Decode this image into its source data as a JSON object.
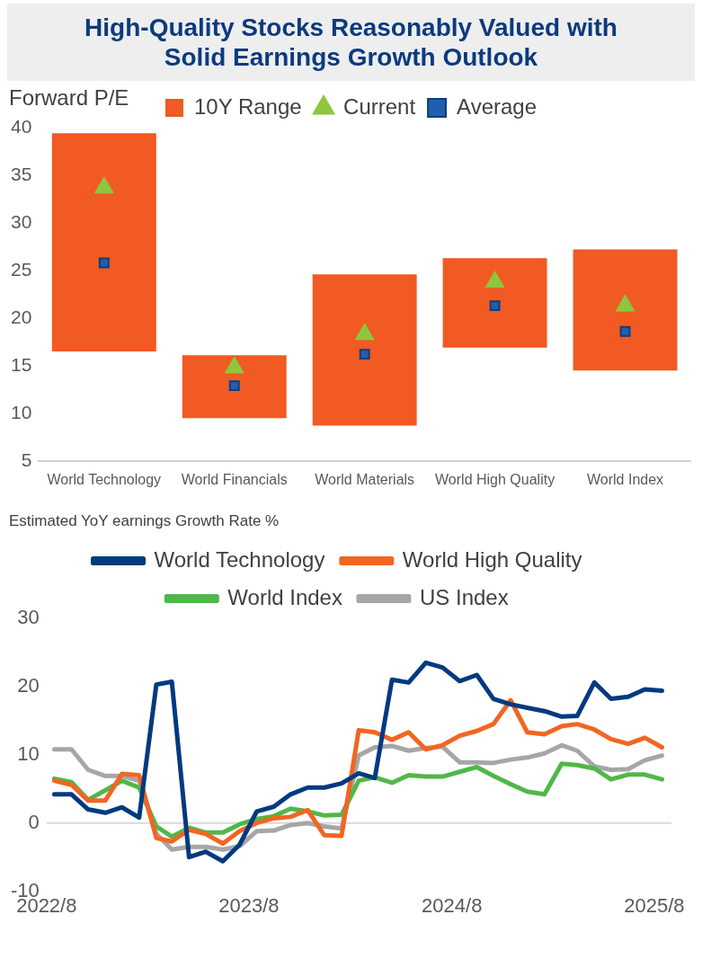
{
  "chart_data": [
    {
      "type": "bar",
      "title": "High-Quality Stocks Reasonably Valued with Solid Earnings Growth Outlook",
      "ylabel": "Forward P/E",
      "categories": [
        "World Technology",
        "World Financials",
        "World Materials",
        "World High Quality",
        "World Index"
      ],
      "series": [
        {
          "type": "bar",
          "name": "10Y Range",
          "color": "#f15a22",
          "base": [
            16.5,
            9.5,
            8.7,
            16.9,
            14.5
          ],
          "values": [
            22.9,
            6.6,
            15.9,
            9.4,
            12.7
          ]
        },
        {
          "type": "scatter",
          "name": "Current",
          "color": "#8dc63f",
          "marker": "triangle",
          "x": [
            "World Technology",
            "World Financials",
            "World Materials",
            "World High Quality",
            "World Index"
          ],
          "values": [
            33.7,
            14.8,
            18.3,
            23.8,
            21.3
          ]
        },
        {
          "type": "scatter",
          "name": "Average",
          "color": "#1f5fae",
          "marker": "square",
          "x": [
            "World Technology",
            "World Financials",
            "World Materials",
            "World High Quality",
            "World Index"
          ],
          "values": [
            25.8,
            12.9,
            16.2,
            21.3,
            18.6
          ]
        }
      ],
      "ylim": [
        5,
        40
      ],
      "yticks": [
        5,
        10,
        15,
        20,
        25,
        30,
        35,
        40
      ],
      "grid": false,
      "legend": "top"
    },
    {
      "type": "line",
      "title": "Estimated YoY earnings Growth Rate %",
      "x": [
        "2022-08-15",
        "2022-09-15",
        "2022-10-15",
        "2022-11-15",
        "2022-12-15",
        "2023-01-15",
        "2023-02-15",
        "2023-03-15",
        "2023-04-15",
        "2023-05-15",
        "2023-06-15",
        "2023-07-15",
        "2023-08-15",
        "2023-09-15",
        "2023-10-15",
        "2023-11-15",
        "2023-12-15",
        "2024-01-15",
        "2024-02-15",
        "2024-03-15",
        "2024-04-15",
        "2024-05-15",
        "2024-06-15",
        "2024-07-15",
        "2024-08-15",
        "2024-09-15",
        "2024-10-15",
        "2024-11-15",
        "2024-12-15",
        "2025-01-15",
        "2025-02-15",
        "2025-03-15",
        "2025-04-15",
        "2025-05-15",
        "2025-06-15",
        "2025-07-15",
        "2025-08-15"
      ],
      "series": [
        {
          "name": "World Technology",
          "color": "#003a80",
          "values": [
            4.2,
            4.2,
            2.0,
            1.5,
            2.3,
            0.8,
            20.3,
            20.7,
            -5.0,
            -4.2,
            -5.6,
            -3.2,
            1.7,
            2.4,
            4.2,
            5.2,
            5.2,
            5.8,
            7.3,
            6.6,
            21.0,
            20.6,
            23.5,
            22.8,
            20.8,
            21.7,
            18.2,
            17.4,
            16.9,
            16.4,
            15.6,
            15.7,
            20.6,
            18.2,
            18.5,
            19.6,
            19.4
          ]
        },
        {
          "name": "World High Quality",
          "color": "#f26522",
          "values": [
            6.2,
            5.6,
            3.3,
            3.3,
            7.2,
            7.0,
            -2.2,
            -2.7,
            -1.0,
            -1.6,
            -3.0,
            -1.2,
            0.0,
            0.7,
            0.9,
            1.9,
            -1.8,
            -1.9,
            13.6,
            13.3,
            12.2,
            13.3,
            10.8,
            11.4,
            12.8,
            13.5,
            14.5,
            18.0,
            13.3,
            13.0,
            14.2,
            14.5,
            13.7,
            12.3,
            11.6,
            12.5,
            11.1
          ]
        },
        {
          "name": "World Index",
          "color": "#50b848",
          "values": [
            6.5,
            6.0,
            3.4,
            4.8,
            6.2,
            5.2,
            -0.5,
            -2.0,
            -0.7,
            -1.4,
            -1.4,
            -0.2,
            0.6,
            1.0,
            2.1,
            1.7,
            1.1,
            1.2,
            6.2,
            6.7,
            5.9,
            7.0,
            6.8,
            6.8,
            7.5,
            8.2,
            6.9,
            5.7,
            4.6,
            4.2,
            8.7,
            8.5,
            8.0,
            6.4,
            7.1,
            7.1,
            6.4
          ]
        },
        {
          "name": "US Index",
          "color": "#a6a6a6",
          "values": [
            10.8,
            10.8,
            7.8,
            6.9,
            6.9,
            6.2,
            -1.6,
            -3.9,
            -3.5,
            -3.5,
            -3.9,
            -3.4,
            -1.2,
            -1.1,
            -0.3,
            0.0,
            -0.5,
            -0.8,
            9.9,
            11.1,
            11.3,
            10.6,
            11.0,
            11.2,
            8.9,
            8.9,
            8.8,
            9.3,
            9.6,
            10.2,
            11.4,
            10.6,
            8.3,
            7.8,
            7.9,
            9.2,
            9.9
          ]
        }
      ],
      "xlim": [
        "2022-08-01",
        "2025-09-01"
      ],
      "xticks": [
        {
          "value": "2022-08-01",
          "label": "2022/8"
        },
        {
          "value": "2023-08-01",
          "label": "2023/8"
        },
        {
          "value": "2024-08-01",
          "label": "2024/8"
        },
        {
          "value": "2025-08-01",
          "label": "2025/8"
        }
      ],
      "ylim": [
        -10,
        30
      ],
      "yticks": [
        -10,
        0,
        10,
        20,
        30
      ],
      "grid": false,
      "legend": "top",
      "marker": "none",
      "line_style": "solid",
      "ref_lines": [
        {
          "axis": "y",
          "value": 0,
          "color": "#d9d9d9"
        }
      ]
    }
  ]
}
